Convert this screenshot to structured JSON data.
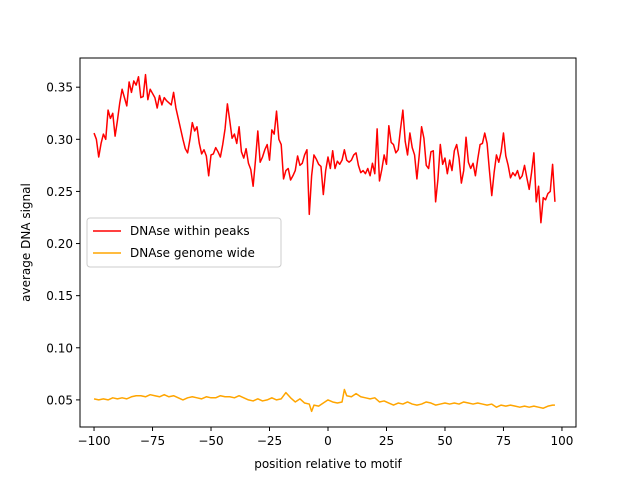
{
  "chart_data": {
    "type": "line",
    "title": "",
    "xlabel": "position relative to motif",
    "ylabel": "average DNA signal",
    "xlim": [
      -106,
      106
    ],
    "ylim": [
      0.024,
      0.378
    ],
    "xticks": [
      -100,
      -75,
      -50,
      -25,
      0,
      25,
      50,
      75,
      100
    ],
    "xtick_labels": [
      "−100",
      "−75",
      "−50",
      "−25",
      "0",
      "25",
      "50",
      "75",
      "100"
    ],
    "yticks": [
      0.05,
      0.1,
      0.15,
      0.2,
      0.25,
      0.3,
      0.35
    ],
    "ytick_labels": [
      "0.05",
      "0.10",
      "0.15",
      "0.20",
      "0.25",
      "0.30",
      "0.35"
    ],
    "grid": false,
    "legend_position": "center-left",
    "series": [
      {
        "name": "DNAse within peaks",
        "color": "#ff0000",
        "points": [
          [
            -100,
            0.306
          ],
          [
            -99,
            0.3
          ],
          [
            -98,
            0.283
          ],
          [
            -97,
            0.296
          ],
          [
            -96,
            0.305
          ],
          [
            -95,
            0.3
          ],
          [
            -94,
            0.328
          ],
          [
            -93,
            0.32
          ],
          [
            -92,
            0.325
          ],
          [
            -91,
            0.303
          ],
          [
            -90,
            0.318
          ],
          [
            -89,
            0.335
          ],
          [
            -88,
            0.348
          ],
          [
            -87,
            0.34
          ],
          [
            -86,
            0.332
          ],
          [
            -85,
            0.355
          ],
          [
            -84,
            0.345
          ],
          [
            -83,
            0.356
          ],
          [
            -82,
            0.352
          ],
          [
            -81,
            0.36
          ],
          [
            -80,
            0.34
          ],
          [
            -79,
            0.341
          ],
          [
            -78,
            0.362
          ],
          [
            -77,
            0.338
          ],
          [
            -76,
            0.348
          ],
          [
            -75,
            0.344
          ],
          [
            -74,
            0.34
          ],
          [
            -73,
            0.33
          ],
          [
            -72,
            0.342
          ],
          [
            -71,
            0.333
          ],
          [
            -70,
            0.34
          ],
          [
            -69,
            0.337
          ],
          [
            -68,
            0.335
          ],
          [
            -67,
            0.333
          ],
          [
            -66,
            0.345
          ],
          [
            -65,
            0.33
          ],
          [
            -64,
            0.32
          ],
          [
            -63,
            0.31
          ],
          [
            -62,
            0.3
          ],
          [
            -61,
            0.291
          ],
          [
            -60,
            0.287
          ],
          [
            -59,
            0.3
          ],
          [
            -58,
            0.316
          ],
          [
            -57,
            0.308
          ],
          [
            -56,
            0.312
          ],
          [
            -55,
            0.296
          ],
          [
            -54,
            0.286
          ],
          [
            -53,
            0.29
          ],
          [
            -52,
            0.284
          ],
          [
            -51,
            0.265
          ],
          [
            -50,
            0.285
          ],
          [
            -49,
            0.286
          ],
          [
            -48,
            0.292
          ],
          [
            -47,
            0.288
          ],
          [
            -46,
            0.283
          ],
          [
            -45,
            0.295
          ],
          [
            -44,
            0.31
          ],
          [
            -43,
            0.334
          ],
          [
            -42,
            0.318
          ],
          [
            -41,
            0.301
          ],
          [
            -40,
            0.305
          ],
          [
            -39,
            0.296
          ],
          [
            -38,
            0.312
          ],
          [
            -37,
            0.288
          ],
          [
            -36,
            0.282
          ],
          [
            -35,
            0.291
          ],
          [
            -34,
            0.277
          ],
          [
            -33,
            0.271
          ],
          [
            -32,
            0.255
          ],
          [
            -31,
            0.28
          ],
          [
            -30,
            0.308
          ],
          [
            -29,
            0.278
          ],
          [
            -28,
            0.283
          ],
          [
            -27,
            0.29
          ],
          [
            -26,
            0.295
          ],
          [
            -25,
            0.28
          ],
          [
            -24,
            0.309
          ],
          [
            -23,
            0.305
          ],
          [
            -22,
            0.327
          ],
          [
            -21,
            0.3
          ],
          [
            -20,
            0.295
          ],
          [
            -19,
            0.262
          ],
          [
            -18,
            0.27
          ],
          [
            -17,
            0.272
          ],
          [
            -16,
            0.261
          ],
          [
            -15,
            0.265
          ],
          [
            -14,
            0.27
          ],
          [
            -13,
            0.284
          ],
          [
            -12,
            0.275
          ],
          [
            -11,
            0.277
          ],
          [
            -10,
            0.285
          ],
          [
            -9,
            0.29
          ],
          [
            -8,
            0.228
          ],
          [
            -7,
            0.265
          ],
          [
            -6,
            0.285
          ],
          [
            -5,
            0.281
          ],
          [
            -4,
            0.276
          ],
          [
            -3,
            0.274
          ],
          [
            -2,
            0.247
          ],
          [
            -1,
            0.27
          ],
          [
            0,
            0.283
          ],
          [
            1,
            0.272
          ],
          [
            2,
            0.289
          ],
          [
            3,
            0.272
          ],
          [
            4,
            0.279
          ],
          [
            5,
            0.276
          ],
          [
            6,
            0.28
          ],
          [
            7,
            0.29
          ],
          [
            8,
            0.28
          ],
          [
            9,
            0.278
          ],
          [
            10,
            0.28
          ],
          [
            11,
            0.285
          ],
          [
            12,
            0.287
          ],
          [
            13,
            0.275
          ],
          [
            14,
            0.268
          ],
          [
            15,
            0.27
          ],
          [
            16,
            0.267
          ],
          [
            17,
            0.272
          ],
          [
            18,
            0.265
          ],
          [
            19,
            0.277
          ],
          [
            20,
            0.267
          ],
          [
            21,
            0.31
          ],
          [
            22,
            0.26
          ],
          [
            23,
            0.271
          ],
          [
            24,
            0.285
          ],
          [
            25,
            0.276
          ],
          [
            26,
            0.313
          ],
          [
            27,
            0.297
          ],
          [
            28,
            0.295
          ],
          [
            29,
            0.287
          ],
          [
            30,
            0.29
          ],
          [
            31,
            0.31
          ],
          [
            32,
            0.328
          ],
          [
            33,
            0.298
          ],
          [
            34,
            0.285
          ],
          [
            35,
            0.306
          ],
          [
            36,
            0.292
          ],
          [
            37,
            0.285
          ],
          [
            38,
            0.262
          ],
          [
            39,
            0.285
          ],
          [
            40,
            0.312
          ],
          [
            41,
            0.301
          ],
          [
            42,
            0.275
          ],
          [
            43,
            0.272
          ],
          [
            44,
            0.288
          ],
          [
            45,
            0.289
          ],
          [
            46,
            0.24
          ],
          [
            47,
            0.262
          ],
          [
            48,
            0.295
          ],
          [
            49,
            0.276
          ],
          [
            50,
            0.282
          ],
          [
            51,
            0.267
          ],
          [
            52,
            0.28
          ],
          [
            53,
            0.27
          ],
          [
            54,
            0.289
          ],
          [
            55,
            0.295
          ],
          [
            56,
            0.282
          ],
          [
            57,
            0.258
          ],
          [
            58,
            0.27
          ],
          [
            59,
            0.302
          ],
          [
            60,
            0.278
          ],
          [
            61,
            0.272
          ],
          [
            62,
            0.277
          ],
          [
            63,
            0.265
          ],
          [
            64,
            0.281
          ],
          [
            65,
            0.295
          ],
          [
            66,
            0.296
          ],
          [
            67,
            0.306
          ],
          [
            68,
            0.296
          ],
          [
            69,
            0.27
          ],
          [
            70,
            0.246
          ],
          [
            71,
            0.268
          ],
          [
            72,
            0.285
          ],
          [
            73,
            0.278
          ],
          [
            74,
            0.288
          ],
          [
            75,
            0.306
          ],
          [
            76,
            0.284
          ],
          [
            77,
            0.275
          ],
          [
            78,
            0.263
          ],
          [
            79,
            0.268
          ],
          [
            80,
            0.265
          ],
          [
            81,
            0.27
          ],
          [
            82,
            0.262
          ],
          [
            83,
            0.265
          ],
          [
            84,
            0.275
          ],
          [
            85,
            0.263
          ],
          [
            86,
            0.252
          ],
          [
            87,
            0.268
          ],
          [
            88,
            0.287
          ],
          [
            89,
            0.24
          ],
          [
            90,
            0.255
          ],
          [
            91,
            0.22
          ],
          [
            92,
            0.244
          ],
          [
            93,
            0.242
          ],
          [
            94,
            0.248
          ],
          [
            95,
            0.25
          ],
          [
            96,
            0.276
          ],
          [
            97,
            0.24
          ]
        ]
      },
      {
        "name": "DNAse genome wide",
        "color": "#ffa500",
        "points": [
          [
            -100,
            0.051
          ],
          [
            -98,
            0.05
          ],
          [
            -96,
            0.051
          ],
          [
            -94,
            0.05
          ],
          [
            -92,
            0.052
          ],
          [
            -90,
            0.051
          ],
          [
            -88,
            0.052
          ],
          [
            -86,
            0.051
          ],
          [
            -84,
            0.053
          ],
          [
            -82,
            0.054
          ],
          [
            -80,
            0.054
          ],
          [
            -78,
            0.053
          ],
          [
            -76,
            0.055
          ],
          [
            -74,
            0.054
          ],
          [
            -72,
            0.053
          ],
          [
            -70,
            0.055
          ],
          [
            -68,
            0.053
          ],
          [
            -66,
            0.054
          ],
          [
            -64,
            0.052
          ],
          [
            -62,
            0.05
          ],
          [
            -60,
            0.052
          ],
          [
            -58,
            0.053
          ],
          [
            -56,
            0.052
          ],
          [
            -54,
            0.051
          ],
          [
            -52,
            0.053
          ],
          [
            -50,
            0.052
          ],
          [
            -48,
            0.052
          ],
          [
            -46,
            0.054
          ],
          [
            -44,
            0.053
          ],
          [
            -42,
            0.053
          ],
          [
            -40,
            0.052
          ],
          [
            -38,
            0.054
          ],
          [
            -36,
            0.052
          ],
          [
            -34,
            0.05
          ],
          [
            -32,
            0.049
          ],
          [
            -30,
            0.051
          ],
          [
            -28,
            0.049
          ],
          [
            -26,
            0.05
          ],
          [
            -24,
            0.052
          ],
          [
            -22,
            0.05
          ],
          [
            -20,
            0.051
          ],
          [
            -18,
            0.057
          ],
          [
            -16,
            0.052
          ],
          [
            -14,
            0.048
          ],
          [
            -12,
            0.051
          ],
          [
            -10,
            0.047
          ],
          [
            -8,
            0.046
          ],
          [
            -7,
            0.039
          ],
          [
            -6,
            0.045
          ],
          [
            -4,
            0.044
          ],
          [
            -2,
            0.047
          ],
          [
            0,
            0.05
          ],
          [
            2,
            0.048
          ],
          [
            4,
            0.047
          ],
          [
            6,
            0.048
          ],
          [
            7,
            0.06
          ],
          [
            8,
            0.054
          ],
          [
            10,
            0.053
          ],
          [
            12,
            0.056
          ],
          [
            14,
            0.053
          ],
          [
            16,
            0.052
          ],
          [
            18,
            0.051
          ],
          [
            20,
            0.052
          ],
          [
            22,
            0.048
          ],
          [
            24,
            0.049
          ],
          [
            26,
            0.047
          ],
          [
            28,
            0.045
          ],
          [
            30,
            0.047
          ],
          [
            32,
            0.046
          ],
          [
            34,
            0.048
          ],
          [
            36,
            0.046
          ],
          [
            38,
            0.045
          ],
          [
            40,
            0.046
          ],
          [
            42,
            0.048
          ],
          [
            44,
            0.047
          ],
          [
            46,
            0.045
          ],
          [
            48,
            0.046
          ],
          [
            50,
            0.047
          ],
          [
            52,
            0.046
          ],
          [
            54,
            0.047
          ],
          [
            56,
            0.046
          ],
          [
            58,
            0.048
          ],
          [
            60,
            0.047
          ],
          [
            62,
            0.046
          ],
          [
            64,
            0.047
          ],
          [
            66,
            0.046
          ],
          [
            68,
            0.045
          ],
          [
            70,
            0.046
          ],
          [
            72,
            0.043
          ],
          [
            74,
            0.045
          ],
          [
            76,
            0.044
          ],
          [
            78,
            0.045
          ],
          [
            80,
            0.044
          ],
          [
            82,
            0.043
          ],
          [
            84,
            0.044
          ],
          [
            86,
            0.043
          ],
          [
            88,
            0.044
          ],
          [
            90,
            0.043
          ],
          [
            92,
            0.042
          ],
          [
            94,
            0.044
          ],
          [
            96,
            0.045
          ],
          [
            97,
            0.045
          ]
        ]
      }
    ]
  }
}
